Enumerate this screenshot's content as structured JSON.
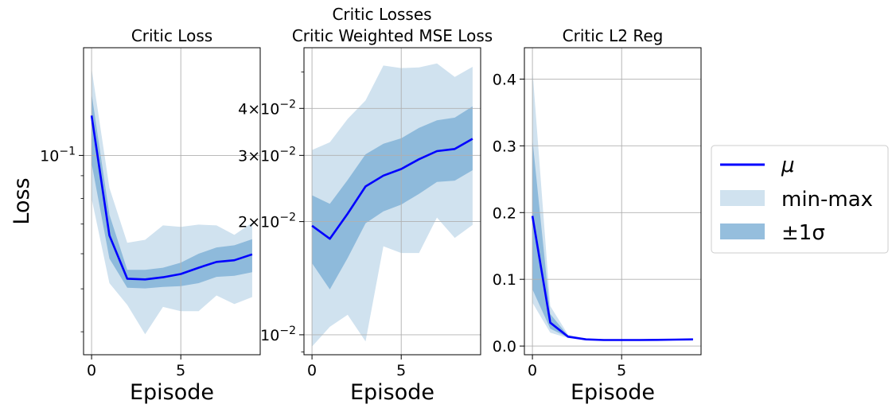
{
  "figure": {
    "suptitle": "Critic Losses",
    "ylabel": "Loss",
    "legend": {
      "placement": "right-center",
      "entries": [
        {
          "label": "μ",
          "kind": "line"
        },
        {
          "label": "min-max",
          "kind": "patch-light"
        },
        {
          "label": "±1σ",
          "kind": "patch-dark"
        }
      ]
    },
    "colors": {
      "mean": "#0000ff",
      "minmax": "#d0e2ef",
      "sigma": "#83b3d7",
      "grid": "#b0b0b0"
    }
  },
  "chart_data": [
    {
      "type": "area",
      "title": "Critic Loss",
      "xlabel": "Episode",
      "ylabel": "Loss",
      "yscale": "log",
      "xlim": [
        -0.45,
        9.45
      ],
      "ylim": [
        0.0355,
        0.175
      ],
      "xticks": [
        0,
        5
      ],
      "xtick_labels": [
        "0",
        "5"
      ],
      "yticks": [
        0.1
      ],
      "ytick_labels": [
        "10^-1"
      ],
      "grid": true,
      "x": [
        0,
        1,
        2,
        3,
        4,
        5,
        6,
        7,
        8,
        9
      ],
      "series": [
        {
          "name": "μ",
          "values": [
            0.123,
            0.066,
            0.0527,
            0.0525,
            0.0531,
            0.054,
            0.0558,
            0.0575,
            0.058,
            0.0598
          ]
        },
        {
          "name": "min-max",
          "lower": [
            0.08,
            0.0515,
            0.046,
            0.0395,
            0.0455,
            0.0445,
            0.0445,
            0.0483,
            0.0462,
            0.0479
          ],
          "upper": [
            0.157,
            0.0845,
            0.0635,
            0.0645,
            0.0695,
            0.069,
            0.0698,
            0.0695,
            0.0662,
            0.0705
          ]
        },
        {
          "name": "±1σ",
          "lower": [
            0.096,
            0.0585,
            0.0503,
            0.0501,
            0.0505,
            0.0507,
            0.0515,
            0.0532,
            0.0535,
            0.0545
          ],
          "upper": [
            0.138,
            0.0735,
            0.0552,
            0.0552,
            0.0558,
            0.0573,
            0.06,
            0.062,
            0.0627,
            0.0647
          ]
        }
      ]
    },
    {
      "type": "area",
      "title": "Critic Weighted MSE Loss",
      "xlabel": "Episode",
      "ylabel": "",
      "yscale": "log",
      "xlim": [
        -0.45,
        9.45
      ],
      "ylim": [
        0.00885,
        0.058
      ],
      "xticks": [
        0,
        5
      ],
      "xtick_labels": [
        "0",
        "5"
      ],
      "yticks": [
        0.01,
        0.02,
        0.03,
        0.04
      ],
      "ytick_labels": [
        "10^-2",
        "2×10^-2",
        "3×10^-2",
        "4×10^-2"
      ],
      "grid": true,
      "x": [
        0,
        1,
        2,
        3,
        4,
        5,
        6,
        7,
        8,
        9
      ],
      "series": [
        {
          "name": "μ",
          "values": [
            0.0195,
            0.018,
            0.021,
            0.0248,
            0.0265,
            0.0276,
            0.0293,
            0.0308,
            0.0312,
            0.0332
          ]
        },
        {
          "name": "min-max",
          "lower": [
            0.0093,
            0.0105,
            0.0113,
            0.0096,
            0.0172,
            0.0165,
            0.0165,
            0.0205,
            0.0181,
            0.0196
          ],
          "upper": [
            0.031,
            0.0325,
            0.0375,
            0.042,
            0.052,
            0.0512,
            0.0514,
            0.0527,
            0.0485,
            0.0516
          ]
        },
        {
          "name": "±1σ",
          "lower": [
            0.0155,
            0.0132,
            0.016,
            0.0198,
            0.0213,
            0.0222,
            0.0237,
            0.0255,
            0.0257,
            0.0274
          ],
          "upper": [
            0.0235,
            0.0223,
            0.0258,
            0.0302,
            0.0322,
            0.0333,
            0.0355,
            0.0372,
            0.0378,
            0.0405
          ]
        }
      ]
    },
    {
      "type": "area",
      "title": "Critic L2 Reg",
      "xlabel": "Episode",
      "ylabel": "",
      "yscale": "linear",
      "xlim": [
        -0.45,
        9.45
      ],
      "ylim": [
        -0.013,
        0.447
      ],
      "xticks": [
        0,
        5
      ],
      "xtick_labels": [
        "0",
        "5"
      ],
      "yticks": [
        0.0,
        0.1,
        0.2,
        0.3,
        0.4
      ],
      "ytick_labels": [
        "0.0",
        "0.1",
        "0.2",
        "0.3",
        "0.4"
      ],
      "grid": true,
      "x": [
        0,
        1,
        2,
        3,
        4,
        5,
        6,
        7,
        8,
        9
      ],
      "series": [
        {
          "name": "μ",
          "values": [
            0.195,
            0.035,
            0.014,
            0.01,
            0.009,
            0.009,
            0.009,
            0.0093,
            0.0097,
            0.01
          ]
        },
        {
          "name": "min-max",
          "lower": [
            0.065,
            0.02,
            0.012,
            0.009,
            0.0085,
            0.0085,
            0.0085,
            0.009,
            0.0093,
            0.0095
          ],
          "upper": [
            0.415,
            0.06,
            0.017,
            0.011,
            0.0095,
            0.0095,
            0.0095,
            0.0097,
            0.01,
            0.0105
          ]
        },
        {
          "name": "±1σ",
          "lower": [
            0.085,
            0.026,
            0.013,
            0.0095,
            0.0088,
            0.0088,
            0.0088,
            0.0092,
            0.0095,
            0.0097
          ],
          "upper": [
            0.31,
            0.048,
            0.0155,
            0.0105,
            0.0092,
            0.0092,
            0.0092,
            0.0095,
            0.0098,
            0.0102
          ]
        }
      ]
    }
  ]
}
